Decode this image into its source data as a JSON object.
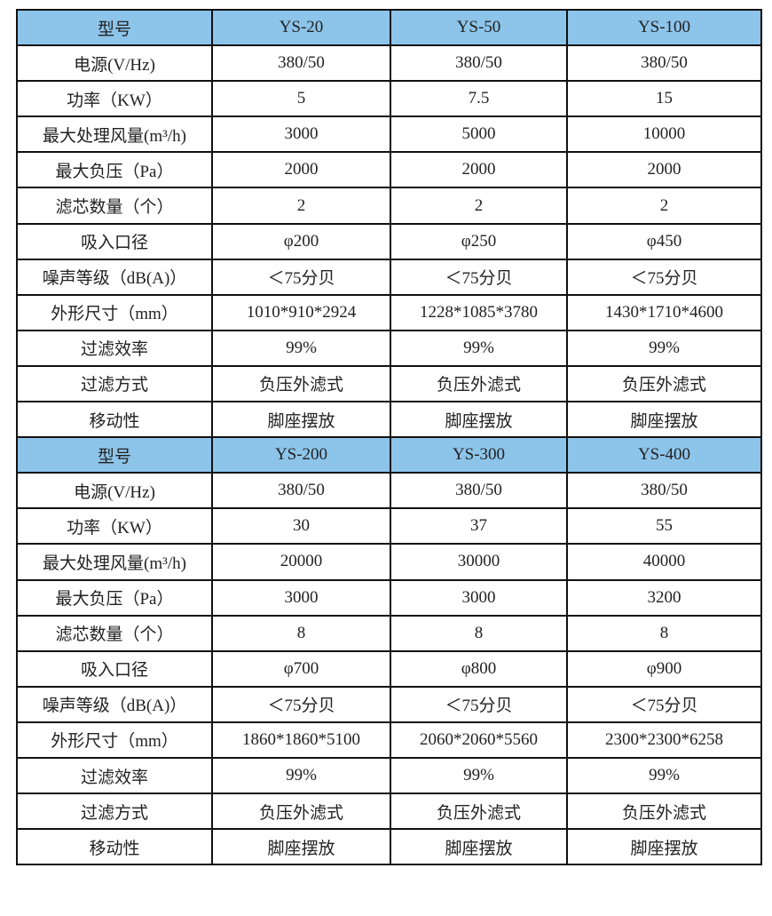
{
  "colors": {
    "header_bg": "#8dc4ea",
    "border": "#111111"
  },
  "tables": [
    {
      "header": [
        "型号",
        "YS-20",
        "YS-50",
        "YS-100"
      ],
      "rows": [
        [
          "电源(V/Hz)",
          "380/50",
          "380/50",
          "380/50"
        ],
        [
          "功率（KW）",
          "5",
          "7.5",
          "15"
        ],
        [
          "最大处理风量(m³/h)",
          "3000",
          "5000",
          "10000"
        ],
        [
          "最大负压（Pa）",
          "2000",
          "2000",
          "2000"
        ],
        [
          "滤芯数量（个）",
          "2",
          "2",
          "2"
        ],
        [
          "吸入口径",
          "φ200",
          "φ250",
          "φ450"
        ],
        [
          "噪声等级（dB(A)）",
          "＜75分贝",
          "＜75分贝",
          "＜75分贝"
        ],
        [
          "外形尺寸（mm）",
          "1010*910*2924",
          "1228*1085*3780",
          "1430*1710*4600"
        ],
        [
          "过滤效率",
          "99%",
          "99%",
          "99%"
        ],
        [
          "过滤方式",
          "负压外滤式",
          "负压外滤式",
          "负压外滤式"
        ],
        [
          "移动性",
          "脚座摆放",
          "脚座摆放",
          "脚座摆放"
        ]
      ]
    },
    {
      "header": [
        "型号",
        "YS-200",
        "YS-300",
        "YS-400"
      ],
      "rows": [
        [
          "电源(V/Hz)",
          "380/50",
          "380/50",
          "380/50"
        ],
        [
          "功率（KW）",
          "30",
          "37",
          "55"
        ],
        [
          "最大处理风量(m³/h)",
          "20000",
          "30000",
          "40000"
        ],
        [
          "最大负压（Pa）",
          "3000",
          "3000",
          "3200"
        ],
        [
          "滤芯数量（个）",
          "8",
          "8",
          "8"
        ],
        [
          "吸入口径",
          "φ700",
          "φ800",
          "φ900"
        ],
        [
          "噪声等级（dB(A)）",
          "＜75分贝",
          "＜75分贝",
          "＜75分贝"
        ],
        [
          "外形尺寸（mm）",
          "1860*1860*5100",
          "2060*2060*5560",
          "2300*2300*6258"
        ],
        [
          "过滤效率",
          "99%",
          "99%",
          "99%"
        ],
        [
          "过滤方式",
          "负压外滤式",
          "负压外滤式",
          "负压外滤式"
        ],
        [
          "移动性",
          "脚座摆放",
          "脚座摆放",
          "脚座摆放"
        ]
      ]
    }
  ]
}
